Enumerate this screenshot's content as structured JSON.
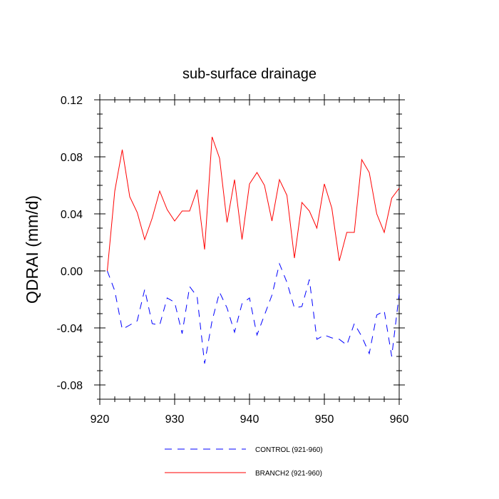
{
  "chart_data": {
    "type": "line",
    "title": "sub-surface drainage",
    "xlabel": "",
    "ylabel": "QDRAI  (mm/d)",
    "xlim": [
      920,
      960
    ],
    "ylim": [
      -0.09,
      0.12
    ],
    "xticks": [
      920,
      930,
      940,
      950,
      960
    ],
    "xtick_labels": [
      "920",
      "930",
      "940",
      "950",
      "960"
    ],
    "yticks": [
      -0.08,
      -0.04,
      0.0,
      0.04,
      0.08,
      0.12
    ],
    "ytick_labels": [
      "-0.08",
      "-0.04",
      "0.00",
      "0.04",
      "0.08",
      "0.12"
    ],
    "grid": false,
    "legend_position": "bottom",
    "x": [
      921,
      922,
      923,
      924,
      925,
      926,
      927,
      928,
      929,
      930,
      931,
      932,
      933,
      934,
      935,
      936,
      937,
      938,
      939,
      940,
      941,
      942,
      943,
      944,
      945,
      946,
      947,
      948,
      949,
      950,
      951,
      952,
      953,
      954,
      955,
      956,
      957,
      958,
      959,
      960
    ],
    "series": [
      {
        "name": "CONTROL (921-960)",
        "color": "#0000ff",
        "dash": "dashed",
        "values": [
          0.0,
          -0.014,
          -0.041,
          -0.038,
          -0.035,
          -0.013,
          -0.037,
          -0.038,
          -0.019,
          -0.022,
          -0.044,
          -0.011,
          -0.018,
          -0.065,
          -0.035,
          -0.015,
          -0.026,
          -0.043,
          -0.023,
          -0.019,
          -0.045,
          -0.031,
          -0.017,
          0.005,
          -0.008,
          -0.026,
          -0.025,
          -0.006,
          -0.048,
          -0.045,
          -0.047,
          -0.048,
          -0.052,
          -0.037,
          -0.046,
          -0.058,
          -0.031,
          -0.028,
          -0.06,
          -0.016
        ]
      },
      {
        "name": "BRANCH2 (921-960)",
        "color": "#ff0000",
        "dash": "solid",
        "values": [
          0.0,
          0.056,
          0.085,
          0.052,
          0.041,
          0.022,
          0.037,
          0.056,
          0.043,
          0.035,
          0.042,
          0.042,
          0.057,
          0.015,
          0.094,
          0.079,
          0.034,
          0.064,
          0.022,
          0.061,
          0.069,
          0.06,
          0.035,
          0.064,
          0.053,
          0.009,
          0.048,
          0.042,
          0.03,
          0.061,
          0.044,
          0.007,
          0.027,
          0.027,
          0.078,
          0.069,
          0.04,
          0.027,
          0.051,
          0.058
        ]
      }
    ]
  }
}
